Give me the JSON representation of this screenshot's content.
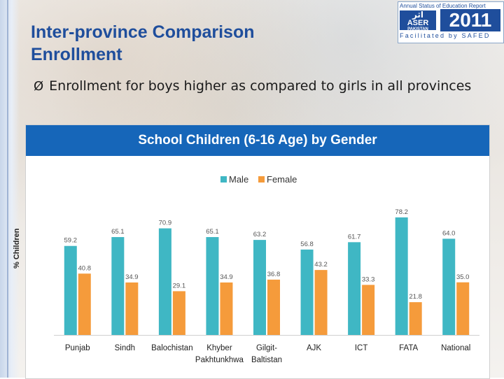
{
  "slide": {
    "title_line1": "Inter-province Comparison",
    "title_line2": "Enrollment",
    "bullet_mark": "Ø",
    "bullet_text": "Enrollment for boys higher as compared to girls in all provinces"
  },
  "logo": {
    "top_text": "Annual Status of Education Report",
    "urdu": "اثر",
    "brand": "ASER",
    "sub": "PAKISTAN",
    "year": "2011",
    "facilitated": "Facilitated by SAFED"
  },
  "colors": {
    "title": "#1f4e9c",
    "header": "#1666b9",
    "male": "#3fb7c4",
    "female": "#f59b3b"
  },
  "chart_data": {
    "type": "bar",
    "title": "School Children (6-16 Age) by Gender",
    "ylabel": "% Children",
    "xlabel": "",
    "ylim": [
      0,
      80
    ],
    "grid": false,
    "legend": "top-center",
    "categories": [
      "Punjab",
      "Sindh",
      "Balochistan",
      "Khyber Pakhtunkhwa",
      "Gilgit-Baltistan",
      "AJK",
      "ICT",
      "FATA",
      "National"
    ],
    "category_lines": [
      [
        "Punjab"
      ],
      [
        "Sindh"
      ],
      [
        "Balochistan"
      ],
      [
        "Khyber",
        "Pakhtunkhwa"
      ],
      [
        "Gilgit-",
        "Baltistan"
      ],
      [
        "AJK"
      ],
      [
        "ICT"
      ],
      [
        "FATA"
      ],
      [
        "National"
      ]
    ],
    "series": [
      {
        "name": "Male",
        "values": [
          59.2,
          65.1,
          70.9,
          65.1,
          63.2,
          56.8,
          61.7,
          78.2,
          64.0
        ],
        "labels": [
          "59.2",
          "65.1",
          "70.9",
          "65.1",
          "63.2",
          "56.8",
          "61.7",
          "78.2",
          "64.0"
        ]
      },
      {
        "name": "Female",
        "values": [
          40.8,
          34.9,
          29.1,
          34.9,
          36.8,
          43.2,
          33.3,
          21.8,
          35.0
        ],
        "labels": [
          "40.8",
          "34.9",
          "29.1",
          "34.9",
          "36.8",
          "43.2",
          "33.3",
          "21.8",
          "35.0"
        ]
      }
    ]
  }
}
